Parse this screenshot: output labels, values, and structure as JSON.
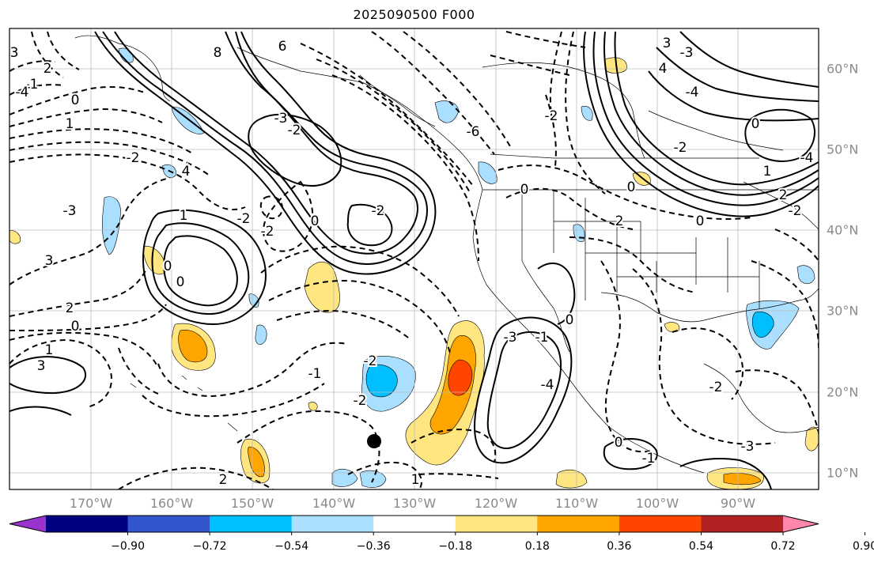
{
  "title": "2025090500 F000",
  "lon_labels": [
    "170°W",
    "160°W",
    "150°W",
    "140°W",
    "130°W",
    "120°W",
    "110°W",
    "100°W",
    "90°W"
  ],
  "lat_labels": [
    "60°N",
    "50°N",
    "40°N",
    "30°N",
    "20°N",
    "10°N"
  ],
  "colorbar": {
    "colors": [
      "#9933cc",
      "#000080",
      "#3355cc",
      "#00bfff",
      "#aadfff",
      "#ffffff",
      "#ffe680",
      "#ffa500",
      "#ff4500",
      "#b22222",
      "#ff88aa"
    ],
    "ticks": [
      "−0.90",
      "−0.72",
      "−0.54",
      "−0.36",
      "−0.18",
      "0.18",
      "0.36",
      "0.54",
      "0.72",
      "0.90"
    ]
  },
  "contour_labels": [
    "3",
    "2",
    "1",
    "0",
    "-1",
    "-2",
    "-3",
    "-4",
    "4",
    "6",
    "8",
    "3",
    "-3",
    "-4",
    "4",
    "-2",
    "0",
    "1",
    "2",
    "-2",
    "-4",
    "-3",
    "-2",
    "-2",
    "0",
    "-2",
    "0",
    "0",
    "1",
    "-2",
    "3",
    "2",
    "0",
    "1",
    "3",
    "-1",
    "-2",
    "-2",
    "-1",
    "0",
    "-3",
    "-4",
    "2",
    "1",
    "0",
    "-1",
    "-3",
    "-2",
    "0",
    "2",
    "0",
    "-2",
    "-6",
    "0"
  ],
  "marker": "station-dot"
}
